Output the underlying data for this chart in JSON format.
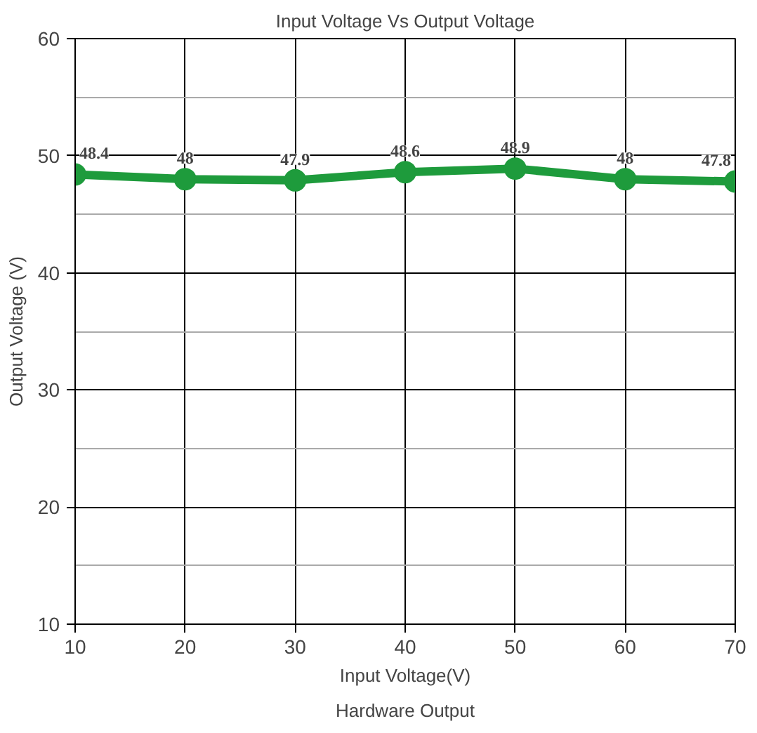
{
  "chart_data": {
    "type": "line",
    "title": "Input Voltage Vs Output Voltage",
    "xlabel": "Input Voltage(V)",
    "ylabel": "Output Voltage (V)",
    "x": [
      10,
      20,
      30,
      40,
      50,
      60,
      70
    ],
    "series": [
      {
        "color": "#1e9b3c",
        "values": [
          48.4,
          48,
          47.9,
          48.6,
          48.9,
          48,
          47.8
        ]
      }
    ],
    "xlim": [
      10,
      70
    ],
    "ylim": [
      10,
      60
    ],
    "xticks": [
      10,
      20,
      30,
      40,
      50,
      60,
      70
    ],
    "yticks": [
      10,
      20,
      30,
      40,
      50,
      60
    ],
    "grid": true,
    "marker": "circle",
    "line_style": "solid",
    "data_labels": true,
    "annotations": [
      "Hardware Output"
    ]
  }
}
